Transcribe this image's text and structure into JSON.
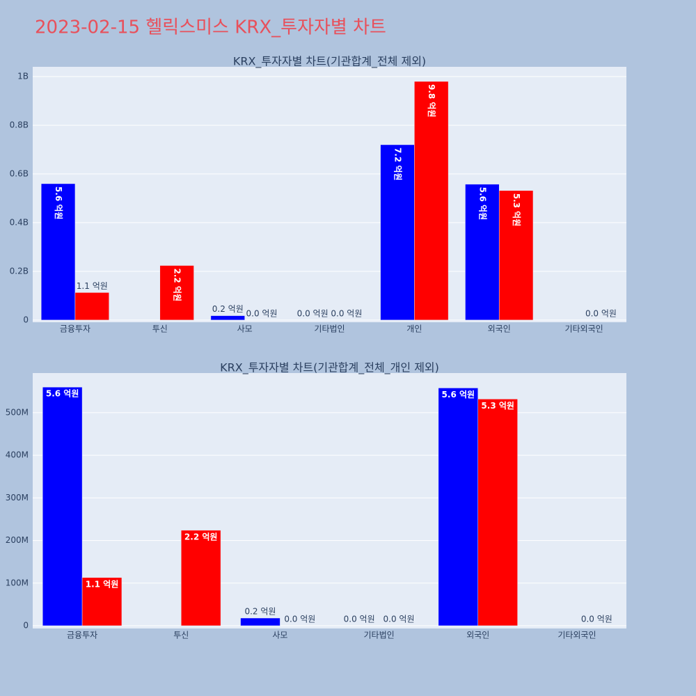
{
  "title": "2023-02-15 헬릭스미스 KRX_투자자별 차트",
  "chart_data": [
    {
      "type": "bar",
      "title": "KRX_투자자별 차트(기관합계_전체 제외)",
      "categories": [
        "금융투자",
        "투신",
        "사모",
        "기타법인",
        "개인",
        "외국인",
        "기타외국인"
      ],
      "series": [
        {
          "color": "#0000ff",
          "values": [
            560000000,
            null,
            18000000,
            0,
            720000000,
            558000000,
            null
          ],
          "value_labels": [
            "5.6 억원",
            null,
            "0.2 억원",
            "0.0 억원",
            "7.2 억원",
            "5.6 억원",
            null
          ]
        },
        {
          "color": "#ff0000",
          "values": [
            113000000,
            224000000,
            0,
            0,
            980000000,
            532000000,
            0
          ],
          "value_labels": [
            "1.1 억원",
            "2.2 억원",
            "0.0 억원",
            "0.0 억원",
            "9.8 억원",
            "5.3 억원",
            "0.0 억원"
          ]
        }
      ],
      "ylim": [
        -9000000,
        1040000000
      ],
      "yticks": [
        0,
        {
          "value": 200000000,
          "label": "0.2B"
        },
        {
          "value": 400000000,
          "label": "0.4B"
        },
        {
          "value": 600000000,
          "label": "0.6B"
        },
        {
          "value": 800000000,
          "label": "0.8B"
        },
        {
          "value": 1000000000,
          "label": "1B"
        }
      ],
      "grid": true
    },
    {
      "type": "bar",
      "title": "KRX_투자자별 차트(기관합계_전체_개인 제외)",
      "categories": [
        "금융투자",
        "투신",
        "사모",
        "기타법인",
        "외국인",
        "기타외국인"
      ],
      "series": [
        {
          "color": "#0000ff",
          "values": [
            560000000,
            null,
            18000000,
            0,
            558000000,
            null
          ],
          "value_labels": [
            "5.6 억원",
            null,
            "0.2 억원",
            "0.0 억원",
            "5.6 억원",
            null
          ]
        },
        {
          "color": "#ff0000",
          "values": [
            113000000,
            224000000,
            0,
            0,
            532000000,
            0
          ],
          "value_labels": [
            "1.1 억원",
            "2.2 억원",
            "0.0 억원",
            "0.0 억원",
            "5.3 억원",
            "0.0 억원"
          ]
        }
      ],
      "ylim": [
        -6500000,
        593000000
      ],
      "yticks": [
        0,
        {
          "value": 100000000,
          "label": "100M"
        },
        {
          "value": 200000000,
          "label": "200M"
        },
        {
          "value": 300000000,
          "label": "300M"
        },
        {
          "value": 400000000,
          "label": "400M"
        },
        {
          "value": 500000000,
          "label": "500M"
        }
      ],
      "grid": true
    }
  ]
}
